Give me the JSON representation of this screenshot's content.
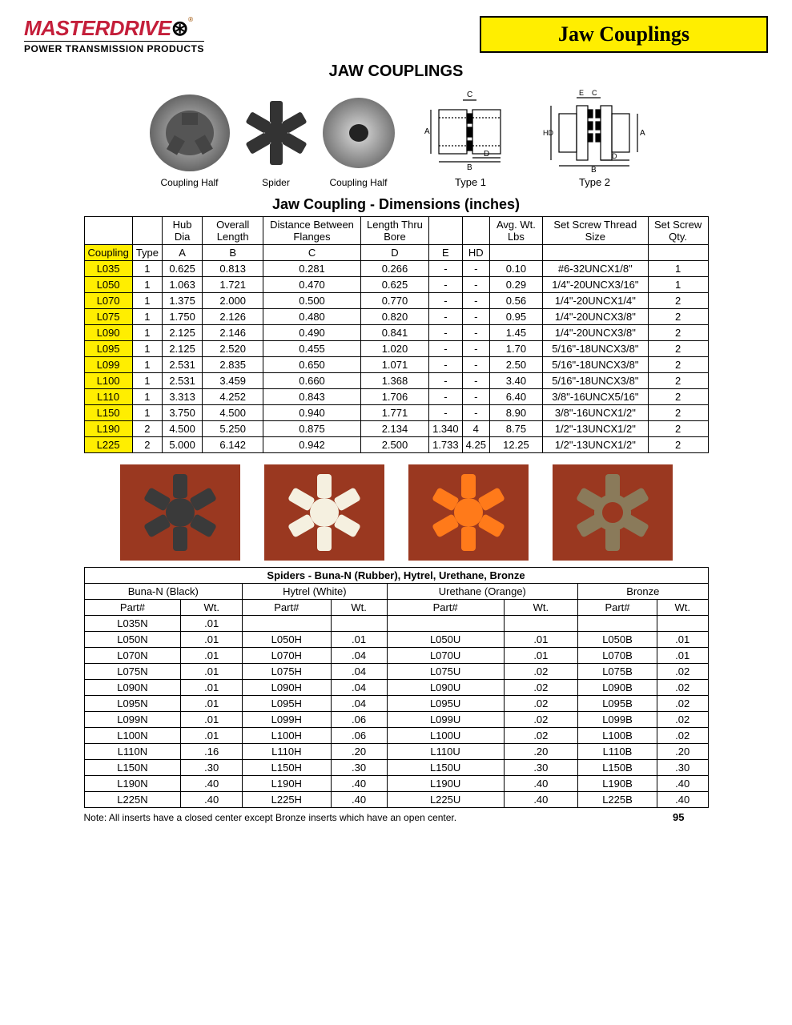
{
  "brand": {
    "name": "MASTERDRIVE",
    "tagline": "POWER TRANSMISSION PRODUCTS"
  },
  "banner": "Jaw Couplings",
  "main_title": "JAW COUPLINGS",
  "product_labels": {
    "half1": "Coupling Half",
    "spider": "Spider",
    "half2": "Coupling Half",
    "type1": "Type 1",
    "type2": "Type 2"
  },
  "dims_title": "Jaw Coupling - Dimensions (inches)",
  "dims_headers_top": [
    "",
    "",
    "Hub Dia",
    "Overall Length",
    "Distance Between Flanges",
    "Length Thru Bore",
    "",
    "",
    "Avg. Wt. Lbs",
    "Set Screw Thread Size",
    "Set Screw Qty."
  ],
  "dims_headers_bot": [
    "Coupling",
    "Type",
    "A",
    "B",
    "C",
    "D",
    "E",
    "HD",
    "",
    "",
    ""
  ],
  "dims_rows": [
    [
      "L035",
      "1",
      "0.625",
      "0.813",
      "0.281",
      "0.266",
      "-",
      "-",
      "0.10",
      "#6-32UNCX1/8\"",
      "1"
    ],
    [
      "L050",
      "1",
      "1.063",
      "1.721",
      "0.470",
      "0.625",
      "-",
      "-",
      "0.29",
      "1/4\"-20UNCX3/16\"",
      "1"
    ],
    [
      "L070",
      "1",
      "1.375",
      "2.000",
      "0.500",
      "0.770",
      "-",
      "-",
      "0.56",
      "1/4\"-20UNCX1/4\"",
      "2"
    ],
    [
      "L075",
      "1",
      "1.750",
      "2.126",
      "0.480",
      "0.820",
      "-",
      "-",
      "0.95",
      "1/4\"-20UNCX3/8\"",
      "2"
    ],
    [
      "L090",
      "1",
      "2.125",
      "2.146",
      "0.490",
      "0.841",
      "-",
      "-",
      "1.45",
      "1/4\"-20UNCX3/8\"",
      "2"
    ],
    [
      "L095",
      "1",
      "2.125",
      "2.520",
      "0.455",
      "1.020",
      "-",
      "-",
      "1.70",
      "5/16\"-18UNCX3/8\"",
      "2"
    ],
    [
      "L099",
      "1",
      "2.531",
      "2.835",
      "0.650",
      "1.071",
      "-",
      "-",
      "2.50",
      "5/16\"-18UNCX3/8\"",
      "2"
    ],
    [
      "L100",
      "1",
      "2.531",
      "3.459",
      "0.660",
      "1.368",
      "-",
      "-",
      "3.40",
      "5/16\"-18UNCX3/8\"",
      "2"
    ],
    [
      "L110",
      "1",
      "3.313",
      "4.252",
      "0.843",
      "1.706",
      "-",
      "-",
      "6.40",
      "3/8\"-16UNCX5/16\"",
      "2"
    ],
    [
      "L150",
      "1",
      "3.750",
      "4.500",
      "0.940",
      "1.771",
      "-",
      "-",
      "8.90",
      "3/8\"-16UNCX1/2\"",
      "2"
    ],
    [
      "L190",
      "2",
      "4.500",
      "5.250",
      "0.875",
      "2.134",
      "1.340",
      "4",
      "8.75",
      "1/2\"-13UNCX1/2\"",
      "2"
    ],
    [
      "L225",
      "2",
      "5.000",
      "6.142",
      "0.942",
      "2.500",
      "1.733",
      "4.25",
      "12.25",
      "1/2\"-13UNCX1/2\"",
      "2"
    ]
  ],
  "spiders_title": "Spiders - Buna-N (Rubber), Hytrel, Urethane, Bronze",
  "spiders_groups": [
    "Buna-N (Black)",
    "Hytrel (White)",
    "Urethane (Orange)",
    "Bronze"
  ],
  "spiders_cols": [
    "Part#",
    "Wt."
  ],
  "spiders_rows": [
    [
      "L035N",
      ".01",
      "",
      "",
      "",
      "",
      "",
      ""
    ],
    [
      "L050N",
      ".01",
      "L050H",
      ".01",
      "L050U",
      ".01",
      "L050B",
      ".01"
    ],
    [
      "L070N",
      ".01",
      "L070H",
      ".04",
      "L070U",
      ".01",
      "L070B",
      ".01"
    ],
    [
      "L075N",
      ".01",
      "L075H",
      ".04",
      "L075U",
      ".02",
      "L075B",
      ".02"
    ],
    [
      "L090N",
      ".01",
      "L090H",
      ".04",
      "L090U",
      ".02",
      "L090B",
      ".02"
    ],
    [
      "L095N",
      ".01",
      "L095H",
      ".04",
      "L095U",
      ".02",
      "L095B",
      ".02"
    ],
    [
      "L099N",
      ".01",
      "L099H",
      ".06",
      "L099U",
      ".02",
      "L099B",
      ".02"
    ],
    [
      "L100N",
      ".01",
      "L100H",
      ".06",
      "L100U",
      ".02",
      "L100B",
      ".02"
    ],
    [
      "L110N",
      ".16",
      "L110H",
      ".20",
      "L110U",
      ".20",
      "L110B",
      ".20"
    ],
    [
      "L150N",
      ".30",
      "L150H",
      ".30",
      "L150U",
      ".30",
      "L150B",
      ".30"
    ],
    [
      "L190N",
      ".40",
      "L190H",
      ".40",
      "L190U",
      ".40",
      "L190B",
      ".40"
    ],
    [
      "L225N",
      ".40",
      "L225H",
      ".40",
      "L225U",
      ".40",
      "L225B",
      ".40"
    ]
  ],
  "spider_colors": {
    "black": "#3a3a3a",
    "white": "#f5f0e0",
    "orange": "#ff7a1a",
    "bronze": "#8a7a5a"
  },
  "footnote": "Note: All inserts have a closed center except Bronze inserts which have an open center.",
  "page_number": "95"
}
